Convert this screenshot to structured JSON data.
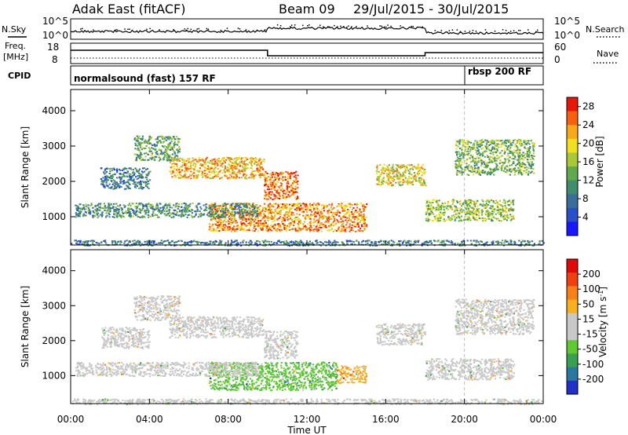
{
  "header": {
    "radar": "Adak East (fitACF)",
    "beam": "Beam 09",
    "dates": "29/Jul/2015 - 30/Jul/2015"
  },
  "strips": {
    "nsky_label": "N.Sky",
    "nsky_ticks": [
      "10^5",
      "10^0"
    ],
    "nsearch_label": "N.Search",
    "freq_label": "Freq.",
    "freq_unit": "[MHz]",
    "freq_ticks": [
      "18",
      "8"
    ],
    "nave_label": "Nave",
    "nave_ticks": [
      "60",
      "0"
    ],
    "cpid_label": "CPID",
    "cpid_segments": [
      {
        "name": "normalsound (fast) 157 RF",
        "start_hour": 0
      },
      {
        "name": "rbsp 200 RF",
        "start_hour": 20
      }
    ]
  },
  "chart_data": [
    {
      "type": "heatmap",
      "title": "Power",
      "xlabel": "Time UT",
      "ylabel": "Slant Range [km]",
      "x_ticks": [
        "00:00",
        "04:00",
        "08:00",
        "12:00",
        "16:00",
        "20:00",
        "00:00"
      ],
      "xlim_hours": [
        0,
        24
      ],
      "y_ticks": [
        1000,
        2000,
        3000,
        4000
      ],
      "ylim": [
        200,
        4600
      ],
      "colorbar_label": "Power [dB]",
      "colorbar_ticks": [
        "4",
        "8",
        "12",
        "16",
        "20",
        "24",
        "28"
      ],
      "colorbar_range": [
        0,
        30
      ],
      "colors": [
        "#1818ff",
        "#2850c8",
        "#3a6e9a",
        "#3f8c6e",
        "#62a84e",
        "#a8c838",
        "#f0e020",
        "#f8a818",
        "#f86010",
        "#e81808"
      ],
      "echo_regions": [
        {
          "t0": 1.5,
          "t1": 4.0,
          "r0": 1800,
          "r1": 2400,
          "power": 8
        },
        {
          "t0": 3.2,
          "t1": 5.5,
          "r0": 2600,
          "r1": 3300,
          "power": 12
        },
        {
          "t0": 5.0,
          "t1": 9.8,
          "r0": 2100,
          "r1": 2700,
          "power": 22
        },
        {
          "t0": 9.8,
          "t1": 11.5,
          "r0": 1500,
          "r1": 2300,
          "power": 26
        },
        {
          "t0": 7.0,
          "t1": 15.0,
          "r0": 600,
          "r1": 1400,
          "power": 24
        },
        {
          "t0": 0.2,
          "t1": 9.5,
          "r0": 1000,
          "r1": 1400,
          "power": 10
        },
        {
          "t0": 15.5,
          "t1": 18.0,
          "r0": 1900,
          "r1": 2500,
          "power": 20
        },
        {
          "t0": 18.0,
          "t1": 22.5,
          "r0": 900,
          "r1": 1500,
          "power": 16
        },
        {
          "t0": 19.5,
          "t1": 23.5,
          "r0": 2200,
          "r1": 3200,
          "power": 14
        },
        {
          "t0": 0.0,
          "t1": 24.0,
          "r0": 200,
          "r1": 350,
          "power": 8
        }
      ]
    },
    {
      "type": "heatmap",
      "title": "Velocity",
      "xlabel": "Time UT",
      "ylabel": "Slant Range [km]",
      "x_ticks": [
        "00:00",
        "04:00",
        "08:00",
        "12:00",
        "16:00",
        "20:00",
        "00:00"
      ],
      "xlim_hours": [
        0,
        24
      ],
      "y_ticks": [
        1000,
        2000,
        3000,
        4000
      ],
      "ylim": [
        200,
        4600
      ],
      "colorbar_label": "Velocity [m s",
      "colorbar_exponent": "-1",
      "colorbar_unit_close": "]",
      "colorbar_ticks": [
        "200",
        "100",
        "50",
        "15",
        "-15",
        "-50",
        "-100",
        "-200"
      ],
      "colors": [
        "#2030c8",
        "#2878a0",
        "#38a050",
        "#60c830",
        "#c8c8c8",
        "#c8c8c8",
        "#f8b020",
        "#f88018",
        "#f04010",
        "#e00808"
      ],
      "echo_regions": [
        {
          "t0": 1.5,
          "t1": 4.0,
          "r0": 1800,
          "r1": 2400,
          "velocity": 0
        },
        {
          "t0": 3.2,
          "t1": 5.5,
          "r0": 2600,
          "r1": 3300,
          "velocity": 0
        },
        {
          "t0": 5.0,
          "t1": 9.8,
          "r0": 2100,
          "r1": 2700,
          "velocity": 0
        },
        {
          "t0": 9.8,
          "t1": 11.5,
          "r0": 1500,
          "r1": 2300,
          "velocity": 0
        },
        {
          "t0": 7.0,
          "t1": 13.5,
          "r0": 600,
          "r1": 1400,
          "velocity": 40
        },
        {
          "t0": 13.5,
          "t1": 15.0,
          "r0": 800,
          "r1": 1300,
          "velocity": -30
        },
        {
          "t0": 0.2,
          "t1": 9.5,
          "r0": 1000,
          "r1": 1400,
          "velocity": 0
        },
        {
          "t0": 15.5,
          "t1": 18.0,
          "r0": 1900,
          "r1": 2500,
          "velocity": 0
        },
        {
          "t0": 18.0,
          "t1": 22.5,
          "r0": 900,
          "r1": 1500,
          "velocity": 0
        },
        {
          "t0": 19.5,
          "t1": 23.5,
          "r0": 2200,
          "r1": 3200,
          "velocity": 0
        },
        {
          "t0": 0.0,
          "t1": 24.0,
          "r0": 200,
          "r1": 350,
          "velocity": 20
        }
      ]
    }
  ]
}
